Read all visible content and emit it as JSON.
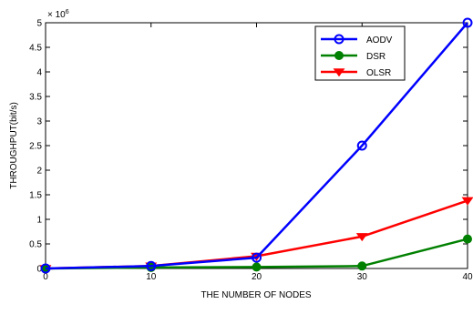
{
  "chart_data": {
    "type": "line",
    "xlabel": "THE NUMBER OF NODES",
    "ylabel": "THROUGHPUT(bit/s)",
    "y_multiplier": "× 10",
    "y_exponent": "6",
    "x": [
      0,
      10,
      20,
      30,
      40
    ],
    "xlim": [
      0,
      40
    ],
    "ylim": [
      0,
      5
    ],
    "xticks": [
      "0",
      "10",
      "20",
      "30",
      "40"
    ],
    "yticks": [
      "0",
      "0.5",
      "1",
      "1.5",
      "2",
      "2.5",
      "3",
      "3.5",
      "4",
      "4.5",
      "5"
    ],
    "grid": false,
    "legend_position": "top-right",
    "series": [
      {
        "name": "AODV",
        "values": [
          0,
          0.05,
          0.22,
          2.5,
          5.0
        ],
        "color": "#0000ff",
        "marker": "circle-open"
      },
      {
        "name": "DSR",
        "values": [
          0,
          0.02,
          0.03,
          0.05,
          0.6
        ],
        "color": "#008000",
        "marker": "circle-filled"
      },
      {
        "name": "OLSR",
        "values": [
          0,
          0.05,
          0.25,
          0.65,
          1.38
        ],
        "color": "#ff0000",
        "marker": "triangle-down"
      }
    ]
  }
}
